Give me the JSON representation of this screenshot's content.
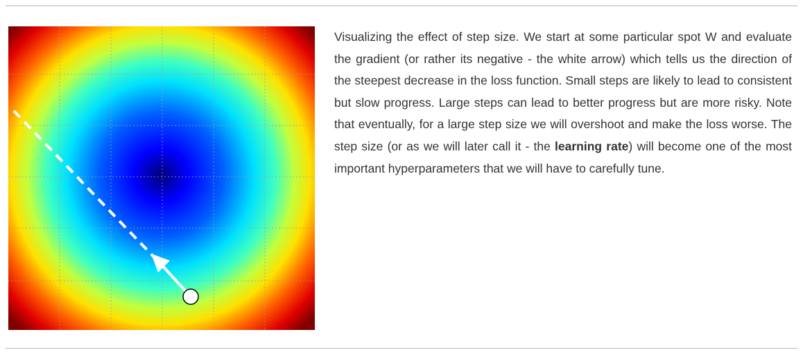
{
  "caption": {
    "text_before": "Visualizing the effect of step size. We start at some particular spot W and evaluate the gradient (or rather its negative - the white arrow) which tells us the direction of the steepest decrease in the loss function. Small steps are likely to lead to consistent but slow progress. Large steps can lead to better progress but are more risky. Note that eventually, for a large step size we will overshoot and make the loss worse. The step size (or as we will later call it - the ",
    "bold_term": "learning rate",
    "text_after": ") will become one of the most important hyperparameters that we will have to carefully tune."
  },
  "figure": {
    "colormap": [
      "#00008f",
      "#0000ff",
      "#00ffff",
      "#ffff00",
      "#ff0000",
      "#800000"
    ],
    "arrow_color": "#ffffff",
    "start_point_fill": "#ffffff",
    "start_point_stroke": "#000000",
    "grid_color": "#9aa0a0"
  }
}
